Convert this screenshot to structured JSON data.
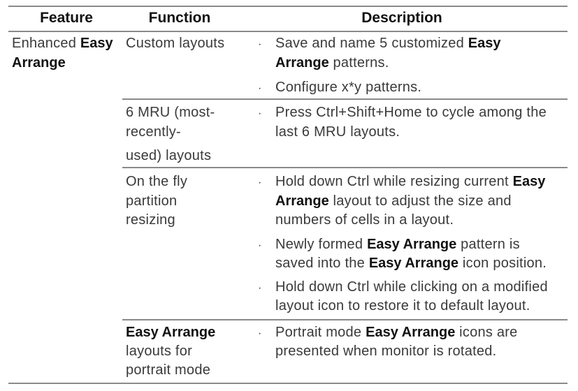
{
  "header": {
    "feature": "Feature",
    "function": "Function",
    "description": "Description"
  },
  "rows": [
    {
      "feature": [
        [
          {
            "text": "Enhanced ",
            "bold": false
          },
          {
            "text": "Easy",
            "bold": true
          }
        ],
        [
          {
            "text": "Arrange",
            "bold": true
          }
        ]
      ],
      "function": [
        [
          {
            "text": "Custom layouts",
            "bold": false
          }
        ]
      ],
      "bullets": [
        [
          [
            {
              "text": "Save and name 5 customized ",
              "bold": false
            },
            {
              "text": "Easy",
              "bold": true
            }
          ],
          [
            {
              "text": "Arrange",
              "bold": true
            },
            {
              "text": " patterns.",
              "bold": false
            }
          ]
        ],
        [
          [
            {
              "text": "Configure x*y patterns.",
              "bold": false
            }
          ]
        ]
      ]
    },
    {
      "feature": [],
      "function": [
        [
          {
            "text": "6 MRU (most-",
            "bold": false
          }
        ],
        [
          {
            "text": "recently-",
            "bold": false
          }
        ],
        [
          {
            "text": "used) layouts",
            "bold": false
          }
        ]
      ],
      "bullets": [
        [
          [
            {
              "text": "Press Ctrl+Shift+Home to cycle among the",
              "bold": false
            }
          ],
          [
            {
              "text": "last 6 MRU layouts.",
              "bold": false
            }
          ]
        ]
      ]
    },
    {
      "feature": [],
      "function": [
        [
          {
            "text": "On the fly",
            "bold": false
          }
        ],
        [
          {
            "text": "partition",
            "bold": false
          }
        ],
        [
          {
            "text": "resizing",
            "bold": false
          }
        ]
      ],
      "bullets": [
        [
          [
            {
              "text": "Hold down Ctrl while resizing current ",
              "bold": false
            },
            {
              "text": "Easy",
              "bold": true
            }
          ],
          [
            {
              "text": "Arrange",
              "bold": true
            },
            {
              "text": " layout to adjust the size and",
              "bold": false
            }
          ],
          [
            {
              "text": "numbers of cells in a layout.",
              "bold": false
            }
          ]
        ],
        [
          [
            {
              "text": "Newly formed ",
              "bold": false
            },
            {
              "text": "Easy Arrange",
              "bold": true
            },
            {
              "text": " pattern is",
              "bold": false
            }
          ],
          [
            {
              "text": "saved into the ",
              "bold": false
            },
            {
              "text": "Easy Arrange",
              "bold": true
            },
            {
              "text": " icon position.",
              "bold": false
            }
          ]
        ],
        [
          [
            {
              "text": "Hold down Ctrl while clicking on a modified",
              "bold": false
            }
          ],
          [
            {
              "text": "layout icon to restore it to default layout.",
              "bold": false
            }
          ]
        ]
      ]
    },
    {
      "feature": [],
      "function": [
        [
          {
            "text": "Easy Arrange",
            "bold": true
          }
        ],
        [
          {
            "text": "layouts for",
            "bold": false
          }
        ],
        [
          {
            "text": "portrait mode",
            "bold": false
          }
        ]
      ],
      "bullets": [
        [
          [
            {
              "text": "Portrait mode ",
              "bold": false
            },
            {
              "text": "Easy Arrange",
              "bold": true
            },
            {
              "text": " icons are",
              "bold": false
            }
          ],
          [
            {
              "text": "presented when monitor is rotated.",
              "bold": false
            }
          ]
        ]
      ]
    }
  ],
  "bullet_glyph": "·"
}
